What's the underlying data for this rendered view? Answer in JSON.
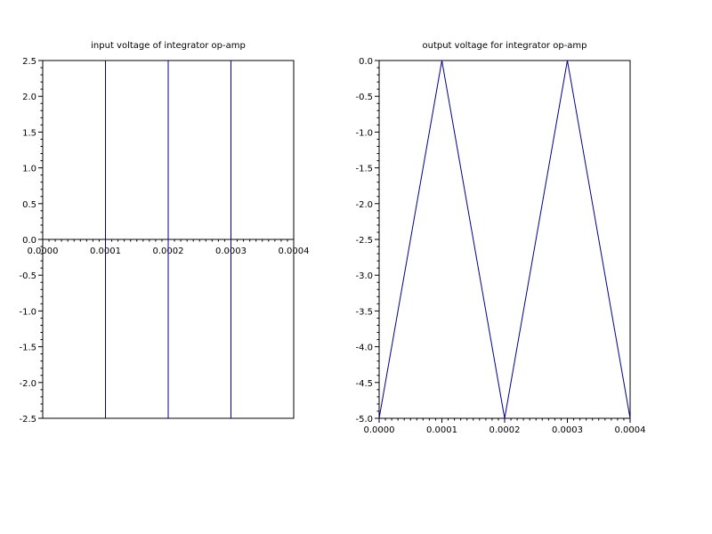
{
  "chart_data": [
    {
      "type": "line",
      "title": "input voltage of integrator op-amp",
      "xlabel": "",
      "ylabel": "",
      "xlim": [
        0,
        0.0004
      ],
      "ylim": [
        -2.5,
        2.5
      ],
      "x_axis_at_y": 0,
      "x_tick_labels": [
        "0.0000",
        "0.0001",
        "0.0002",
        "0.0003",
        "0.0004"
      ],
      "x_tick_values": [
        0,
        0.0001,
        0.0002,
        0.0003,
        0.0004
      ],
      "y_tick_labels": [
        "2.5",
        "2.0",
        "1.5",
        "1.0",
        "0.5",
        "0.0",
        "-0.5",
        "-1.0",
        "-1.5",
        "-2.0",
        "-2.5"
      ],
      "y_tick_values": [
        2.5,
        2.0,
        1.5,
        1.0,
        0.5,
        0.0,
        -0.5,
        -1.0,
        -1.5,
        -2.0,
        -2.5
      ],
      "grid": false,
      "line_color": "#00008b",
      "series": [
        {
          "x": [
            0.0001,
            0.0001,
            0.0002,
            0.0002,
            0.0003,
            0.0003
          ],
          "y": [
            -2.5,
            2.5,
            -2.5,
            2.5,
            -2.5,
            2.5
          ],
          "segments": [
            [
              0,
              1
            ],
            [
              2,
              3
            ],
            [
              4,
              5
            ]
          ]
        }
      ]
    },
    {
      "type": "line",
      "title": "output voltage for integrator op-amp",
      "xlabel": "",
      "ylabel": "",
      "xlim": [
        0,
        0.0004
      ],
      "ylim": [
        -5.0,
        0.0
      ],
      "x_axis_at_y": -5.0,
      "x_tick_labels": [
        "0.0000",
        "0.0001",
        "0.0002",
        "0.0003",
        "0.0004"
      ],
      "x_tick_values": [
        0,
        0.0001,
        0.0002,
        0.0003,
        0.0004
      ],
      "y_tick_labels": [
        "0.0",
        "-0.5",
        "-1.0",
        "-1.5",
        "-2.0",
        "-2.5",
        "-3.0",
        "-3.5",
        "-4.0",
        "-4.5",
        "-5.0"
      ],
      "y_tick_values": [
        0.0,
        -0.5,
        -1.0,
        -1.5,
        -2.0,
        -2.5,
        -3.0,
        -3.5,
        -4.0,
        -4.5,
        -5.0
      ],
      "grid": false,
      "line_color": "#00008b",
      "series": [
        {
          "x": [
            0,
            0.0001,
            0.0002,
            0.0003,
            0.0004
          ],
          "y": [
            -5.0,
            0.0,
            -5.0,
            0.0,
            -5.0
          ]
        }
      ]
    }
  ]
}
